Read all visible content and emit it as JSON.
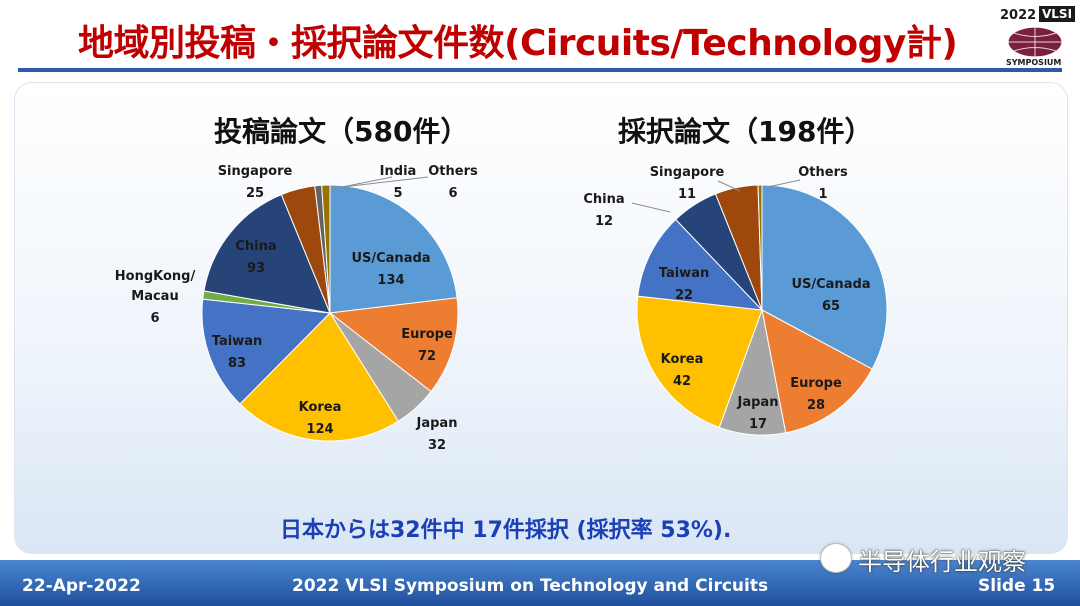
{
  "header": {
    "title": "地域別投稿・採択論文件数(Circuits/Technology計)",
    "logo_year": "2022",
    "logo_tag": "VLSI",
    "logo_sub": "SYMPOSIUM"
  },
  "chart_data": [
    {
      "type": "pie",
      "title": "投稿論文（580件）",
      "total": 580,
      "categories": [
        "US/Canada",
        "Europe",
        "Japan",
        "Korea",
        "Taiwan",
        "HongKong/ Macau",
        "China",
        "Singapore",
        "India",
        "Others"
      ],
      "values": [
        134,
        72,
        32,
        124,
        83,
        6,
        93,
        25,
        5,
        6
      ],
      "colors": [
        "#5b9bd5",
        "#ed7d31",
        "#a5a5a5",
        "#ffc000",
        "#4472c4",
        "#70ad47",
        "#264478",
        "#9e480e",
        "#636363",
        "#997300"
      ]
    },
    {
      "type": "pie",
      "title": "採択論文（198件）",
      "total": 198,
      "categories": [
        "US/Canada",
        "Europe",
        "Japan",
        "Korea",
        "Taiwan",
        "China",
        "Singapore",
        "Others"
      ],
      "values": [
        65,
        28,
        17,
        42,
        22,
        12,
        11,
        1
      ],
      "colors": [
        "#5b9bd5",
        "#ed7d31",
        "#a5a5a5",
        "#ffc000",
        "#4472c4",
        "#264478",
        "#9e480e",
        "#997300"
      ]
    }
  ],
  "note": "日本からは32件中 17件採択 (採択率 53%).",
  "footer": {
    "date": "22-Apr-2022",
    "conference": "2022 VLSI Symposium on Technology and Circuits",
    "slide": "Slide 15"
  },
  "watermark": "半导体行业观察"
}
